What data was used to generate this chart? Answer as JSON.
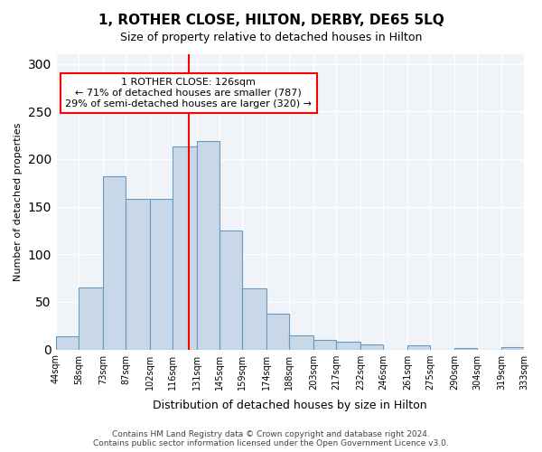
{
  "title": "1, ROTHER CLOSE, HILTON, DERBY, DE65 5LQ",
  "subtitle": "Size of property relative to detached houses in Hilton",
  "xlabel": "Distribution of detached houses by size in Hilton",
  "ylabel": "Number of detached properties",
  "bar_labels": [
    "44sqm",
    "58sqm",
    "73sqm",
    "87sqm",
    "102sqm",
    "116sqm",
    "131sqm",
    "145sqm",
    "159sqm",
    "174sqm",
    "188sqm",
    "203sqm",
    "217sqm",
    "232sqm",
    "246sqm",
    "261sqm",
    "275sqm",
    "290sqm",
    "304sqm",
    "319sqm",
    "333sqm"
  ],
  "bar_values": [
    14,
    65,
    182,
    158,
    158,
    213,
    219,
    125,
    64,
    38,
    15,
    10,
    8,
    5,
    0,
    4,
    0,
    1,
    0,
    2
  ],
  "bar_color": "#c8d8e8",
  "bar_edge_color": "#6699bb",
  "property_line_x": 126,
  "annotation_text": "1 ROTHER CLOSE: 126sqm\n← 71% of detached houses are smaller (787)\n29% of semi-detached houses are larger (320) →",
  "annotation_box_color": "white",
  "annotation_box_edge_color": "red",
  "vline_color": "red",
  "ylim": [
    0,
    310
  ],
  "yticks": [
    0,
    50,
    100,
    150,
    200,
    250,
    300
  ],
  "bin_edges": [
    44,
    58,
    73,
    87,
    102,
    116,
    131,
    145,
    159,
    174,
    188,
    203,
    217,
    232,
    246,
    261,
    275,
    290,
    304,
    319,
    333
  ],
  "footer": "Contains HM Land Registry data © Crown copyright and database right 2024.\nContains public sector information licensed under the Open Government Licence v3.0.",
  "bg_color": "#f0f4f8"
}
